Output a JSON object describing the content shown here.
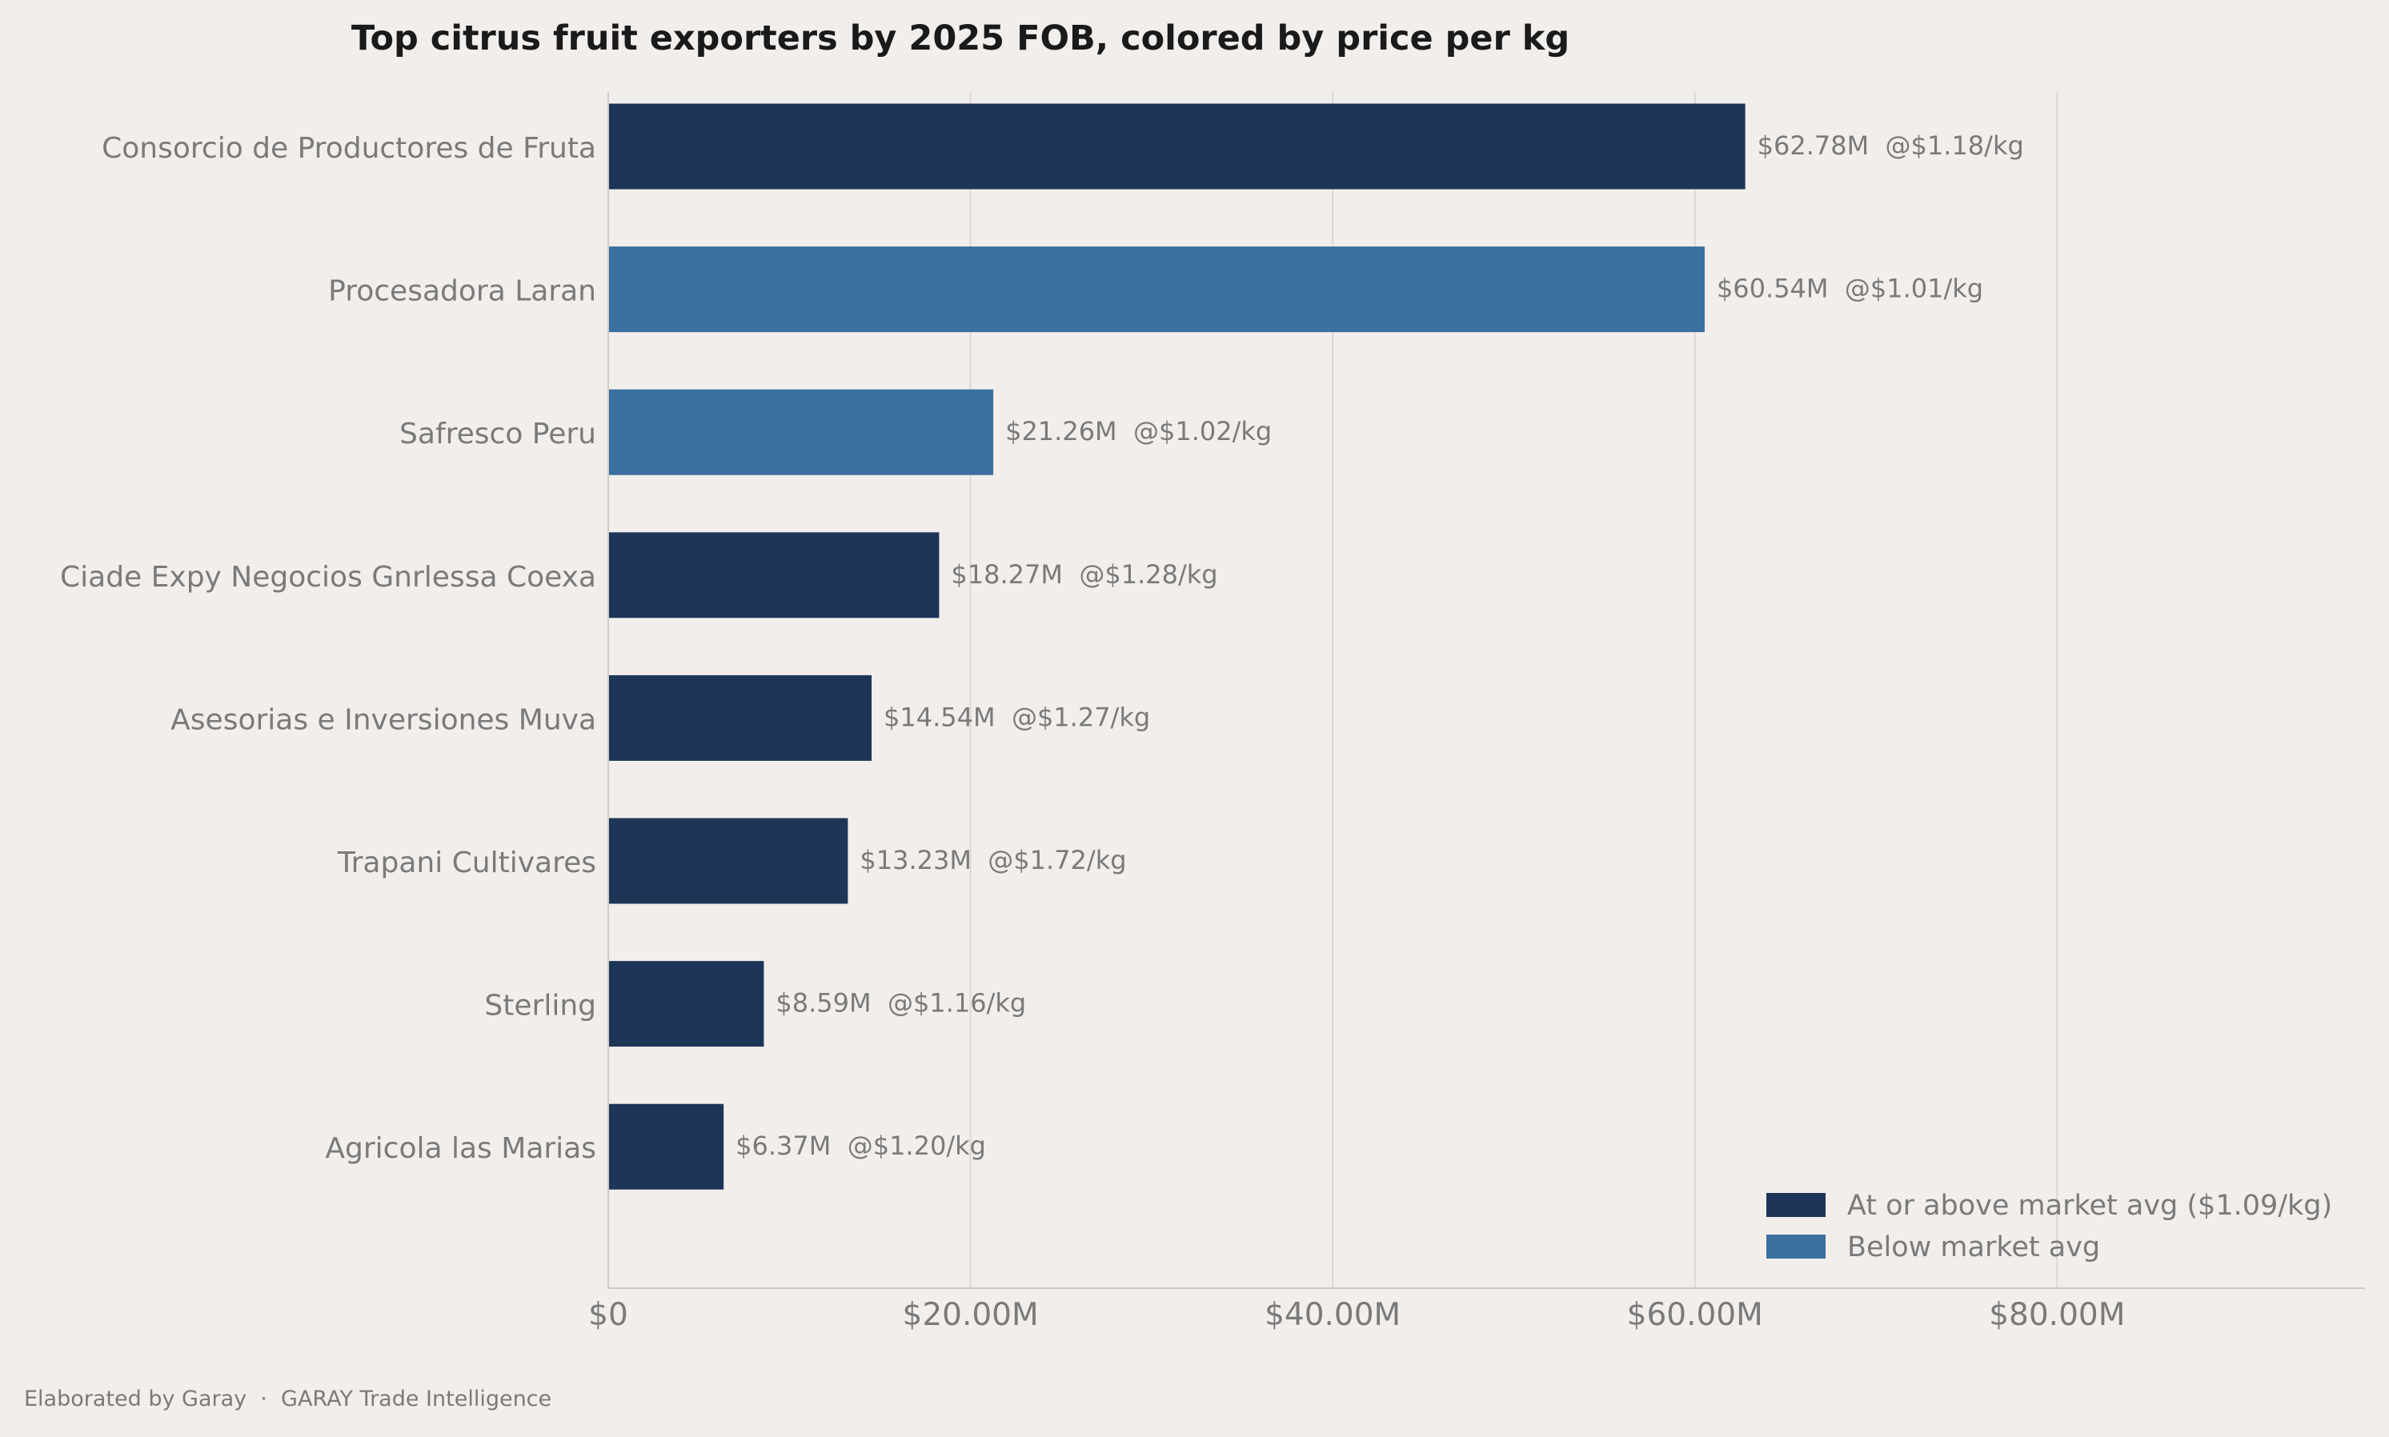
{
  "chart_data": {
    "type": "bar",
    "orientation": "horizontal",
    "title": "Top citrus fruit exporters by 2025 FOB, colored by price per kg",
    "xlabel": "",
    "ylabel": "",
    "xlim": [
      0,
      97
    ],
    "x_ticks": [
      0,
      20,
      40,
      60,
      80
    ],
    "x_tick_labels": [
      "$0",
      "$20.00M",
      "$40.00M",
      "$60.00M",
      "$80.00M"
    ],
    "grid": "vertical",
    "categories": [
      "Consorcio de Productores de Fruta",
      "Procesadora Laran",
      "Safresco Peru",
      "Ciade Expy Negocios Gnrlessa Coexa",
      "Asesorias e Inversiones Muva",
      "Trapani Cultivares",
      "Sterling",
      "Agricola las Marias"
    ],
    "values": [
      62.78,
      60.54,
      21.26,
      18.27,
      14.54,
      13.23,
      8.59,
      6.37
    ],
    "price_per_kg": [
      1.18,
      1.01,
      1.02,
      1.28,
      1.27,
      1.72,
      1.16,
      1.2
    ],
    "data_labels": [
      "$62.78M  @$1.18/kg",
      "$60.54M  @$1.01/kg",
      "$21.26M  @$1.02/kg",
      "$18.27M  @$1.28/kg",
      "$14.54M  @$1.27/kg",
      "$13.23M  @$1.72/kg",
      "$8.59M  @$1.16/kg",
      "$6.37M  @$1.20/kg"
    ],
    "groups": [
      "above",
      "below",
      "below",
      "above",
      "above",
      "above",
      "above",
      "above"
    ],
    "legend": {
      "position": "bottom-right",
      "entries": [
        {
          "key": "above",
          "label": "At or above market avg ($1.09/kg)",
          "color": "#1d3557"
        },
        {
          "key": "below",
          "label": "Below market avg",
          "color": "#3a6f9e"
        }
      ]
    }
  },
  "footer": "Elaborated by Garay  ·  GARAY Trade Intelligence"
}
